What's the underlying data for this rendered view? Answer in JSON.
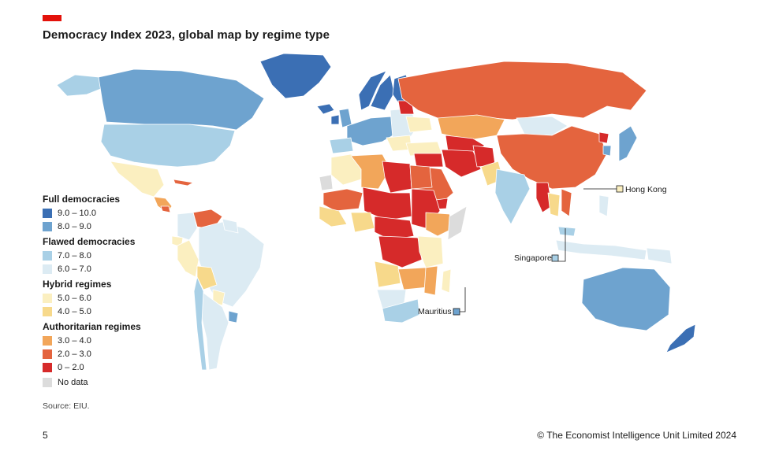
{
  "header": {
    "title": "Democracy Index 2023, global map by regime type"
  },
  "legend": {
    "groups": [
      {
        "title": "Full democracies",
        "items": [
          {
            "label": "9.0 – 10.0",
            "color": "#3b6fb4"
          },
          {
            "label": "8.0 – 9.0",
            "color": "#6ea3cf"
          }
        ]
      },
      {
        "title": "Flawed democracies",
        "items": [
          {
            "label": "7.0 – 8.0",
            "color": "#a9d0e6"
          },
          {
            "label": "6.0 – 7.0",
            "color": "#dcebf3"
          }
        ]
      },
      {
        "title": "Hybrid regimes",
        "items": [
          {
            "label": "5.0 – 6.0",
            "color": "#fbefc0"
          },
          {
            "label": "4.0 – 5.0",
            "color": "#f7d98b"
          }
        ]
      },
      {
        "title": "Authoritarian regimes",
        "items": [
          {
            "label": "3.0 – 4.0",
            "color": "#f2a65a"
          },
          {
            "label": "2.0 – 3.0",
            "color": "#e4643e"
          },
          {
            "label": "0 – 2.0",
            "color": "#d62a2a"
          }
        ]
      }
    ],
    "no_data": {
      "label": "No data",
      "color": "#dcdcdc"
    }
  },
  "callouts": {
    "hong_kong": "Hong Kong",
    "singapore": "Singapore",
    "mauritius": "Mauritius"
  },
  "footer": {
    "source": "Source: EIU.",
    "page_number": "5",
    "copyright": "© The Economist Intelligence Unit Limited 2024"
  }
}
